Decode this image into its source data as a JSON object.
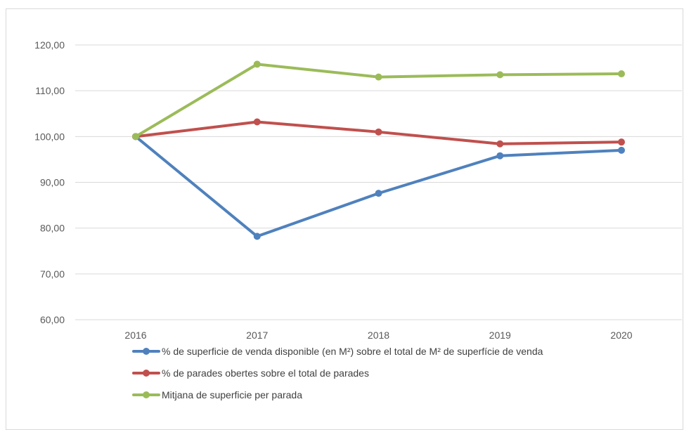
{
  "chart_data": {
    "type": "line",
    "categories": [
      "2016",
      "2017",
      "2018",
      "2019",
      "2020"
    ],
    "ylim": [
      60,
      120
    ],
    "yticks": [
      "60,00",
      "70,00",
      "80,00",
      "90,00",
      "100,00",
      "110,00",
      "120,00"
    ],
    "ytick_values": [
      60,
      70,
      80,
      90,
      100,
      110,
      120
    ],
    "grid": true,
    "legend_position": "bottom",
    "series": [
      {
        "name": "% de superficie de venda disponible (en M²) sobre el total de M²  de superfície de venda",
        "color": "#4f81bd",
        "values": [
          100.0,
          78.2,
          87.6,
          95.8,
          97.0
        ]
      },
      {
        "name": "% de parades obertes sobre el total de parades",
        "color": "#c0504d",
        "values": [
          100.0,
          103.2,
          101.0,
          98.4,
          98.8
        ]
      },
      {
        "name": "Mitjana de superficie per parada",
        "color": "#9bbb59",
        "values": [
          100.0,
          115.8,
          113.0,
          113.5,
          113.7
        ]
      }
    ]
  }
}
